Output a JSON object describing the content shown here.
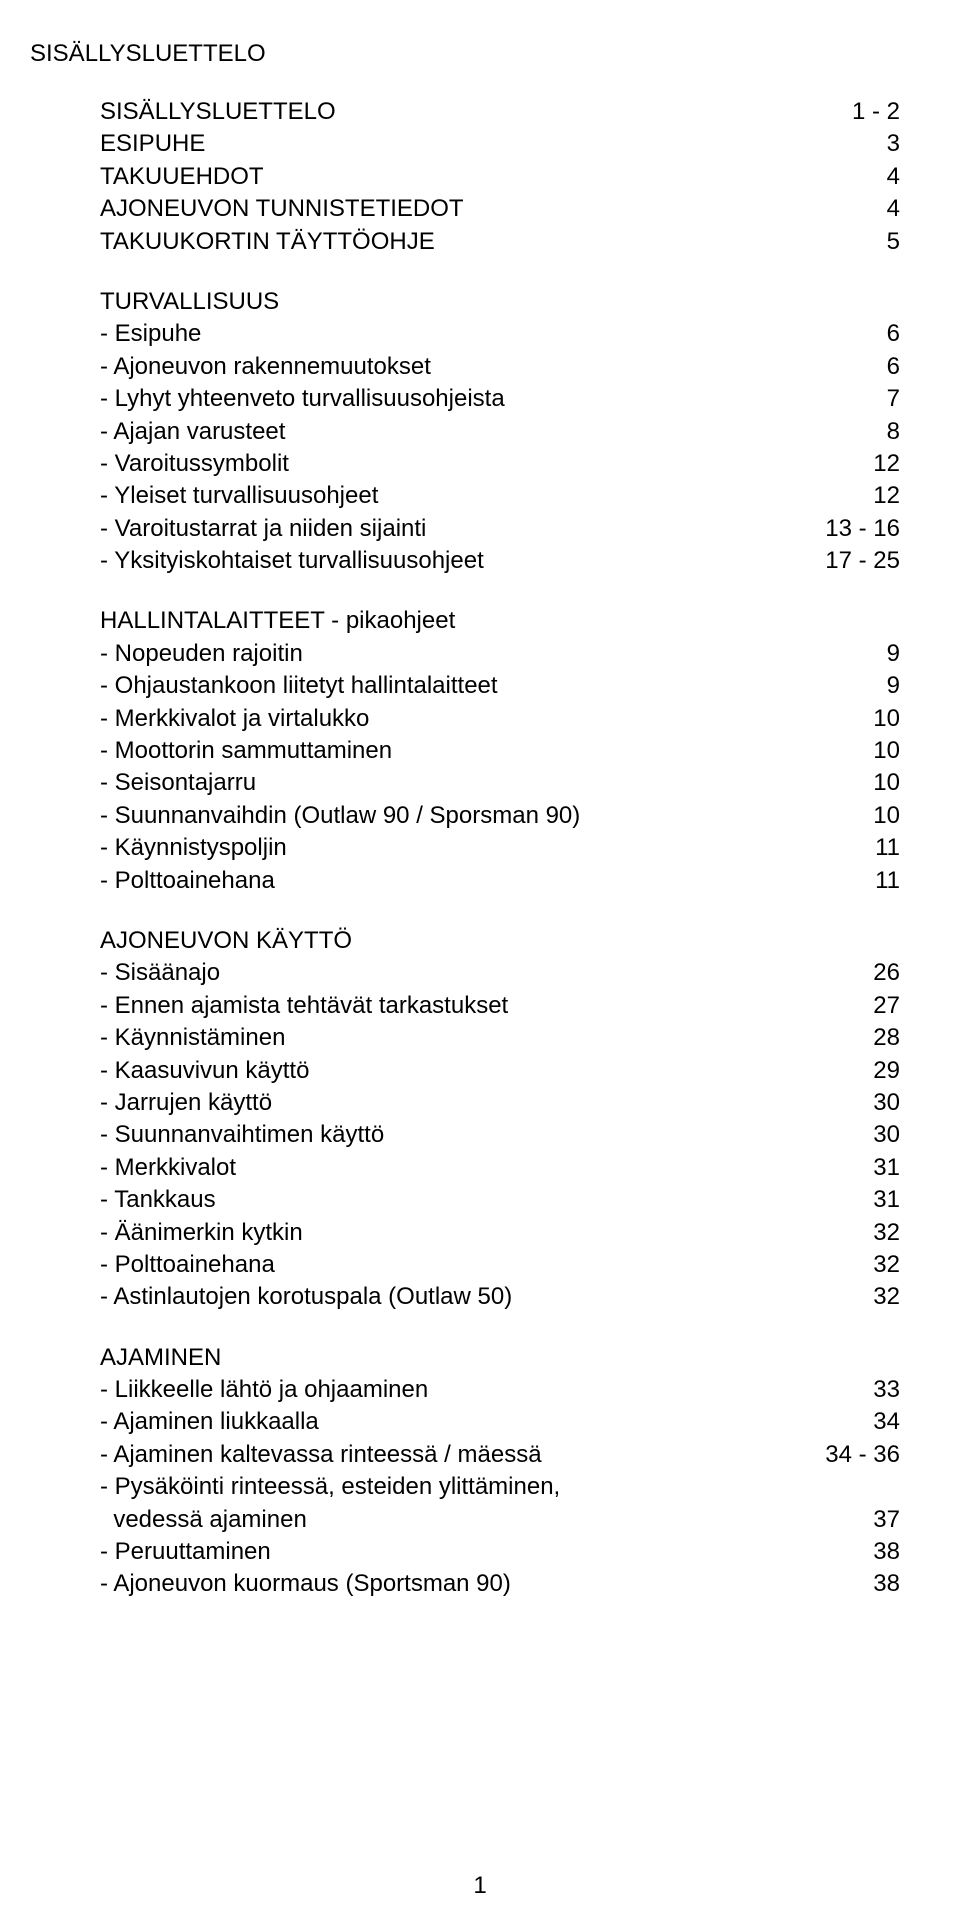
{
  "topTitle": "SISÄLLYSLUETTELO",
  "pageNumber": "1",
  "blocks": [
    {
      "rows": [
        {
          "label": "SISÄLLYSLUETTELO",
          "page": "1 - 2"
        },
        {
          "label": "ESIPUHE",
          "page": "3"
        },
        {
          "label": "TAKUUEHDOT",
          "page": "4"
        },
        {
          "label": "AJONEUVON TUNNISTETIEDOT",
          "page": "4"
        },
        {
          "label": "TAKUUKORTIN TÄYTTÖOHJE",
          "page": "5"
        }
      ]
    },
    {
      "rows": [
        {
          "label": "TURVALLISUUS",
          "page": ""
        },
        {
          "label": "- Esipuhe",
          "page": "6"
        },
        {
          "label": "- Ajoneuvon rakennemuutokset",
          "page": "6"
        },
        {
          "label": "- Lyhyt yhteenveto turvallisuusohjeista",
          "page": "7"
        },
        {
          "label": "- Ajajan varusteet",
          "page": "8"
        },
        {
          "label": "- Varoitussymbolit",
          "page": "12"
        },
        {
          "label": "- Yleiset turvallisuusohjeet",
          "page": "12"
        },
        {
          "label": "- Varoitustarrat ja niiden sijainti",
          "page": "13 - 16"
        },
        {
          "label": "- Yksityiskohtaiset turvallisuusohjeet",
          "page": "17 - 25"
        }
      ]
    },
    {
      "rows": [
        {
          "label": "HALLINTALAITTEET - pikaohjeet",
          "page": ""
        },
        {
          "label": "- Nopeuden rajoitin",
          "page": "9"
        },
        {
          "label": "- Ohjaustankoon liitetyt hallintalaitteet",
          "page": "9"
        },
        {
          "label": "- Merkkivalot ja virtalukko",
          "page": "10"
        },
        {
          "label": "- Moottorin sammuttaminen",
          "page": "10"
        },
        {
          "label": "- Seisontajarru",
          "page": "10"
        },
        {
          "label": "- Suunnanvaihdin (Outlaw 90 / Sporsman 90)",
          "page": "10"
        },
        {
          "label": "- Käynnistyspoljin",
          "page": "11"
        },
        {
          "label": "- Polttoainehana",
          "page": "11"
        }
      ]
    },
    {
      "rows": [
        {
          "label": "AJONEUVON KÄYTTÖ",
          "page": ""
        },
        {
          "label": "- Sisäänajo",
          "page": "26"
        },
        {
          "label": "- Ennen ajamista tehtävät tarkastukset",
          "page": "27"
        },
        {
          "label": "- Käynnistäminen",
          "page": "28"
        },
        {
          "label": "- Kaasuvivun käyttö",
          "page": "29"
        },
        {
          "label": "- Jarrujen käyttö",
          "page": "30"
        },
        {
          "label": "- Suunnanvaihtimen käyttö",
          "page": "30"
        },
        {
          "label": "- Merkkivalot",
          "page": "31"
        },
        {
          "label": "- Tankkaus",
          "page": "31"
        },
        {
          "label": "- Äänimerkin kytkin",
          "page": "32"
        },
        {
          "label": "- Polttoainehana",
          "page": "32"
        },
        {
          "label": "- Astinlautojen korotuspala (Outlaw 50)",
          "page": "32"
        }
      ]
    },
    {
      "rows": [
        {
          "label": "AJAMINEN",
          "page": ""
        },
        {
          "label": "- Liikkeelle lähtö ja ohjaaminen",
          "page": "33"
        },
        {
          "label": "- Ajaminen liukkaalla",
          "page": "34"
        },
        {
          "label": "- Ajaminen kaltevassa rinteessä / mäessä",
          "page": "34 - 36"
        },
        {
          "label": "- Pysäköinti rinteessä, esteiden ylittäminen,",
          "page": ""
        },
        {
          "label": "  vedessä ajaminen",
          "page": "37"
        },
        {
          "label": "- Peruuttaminen",
          "page": "38"
        },
        {
          "label": "- Ajoneuvon kuormaus (Sportsman 90)",
          "page": "38"
        }
      ]
    }
  ]
}
